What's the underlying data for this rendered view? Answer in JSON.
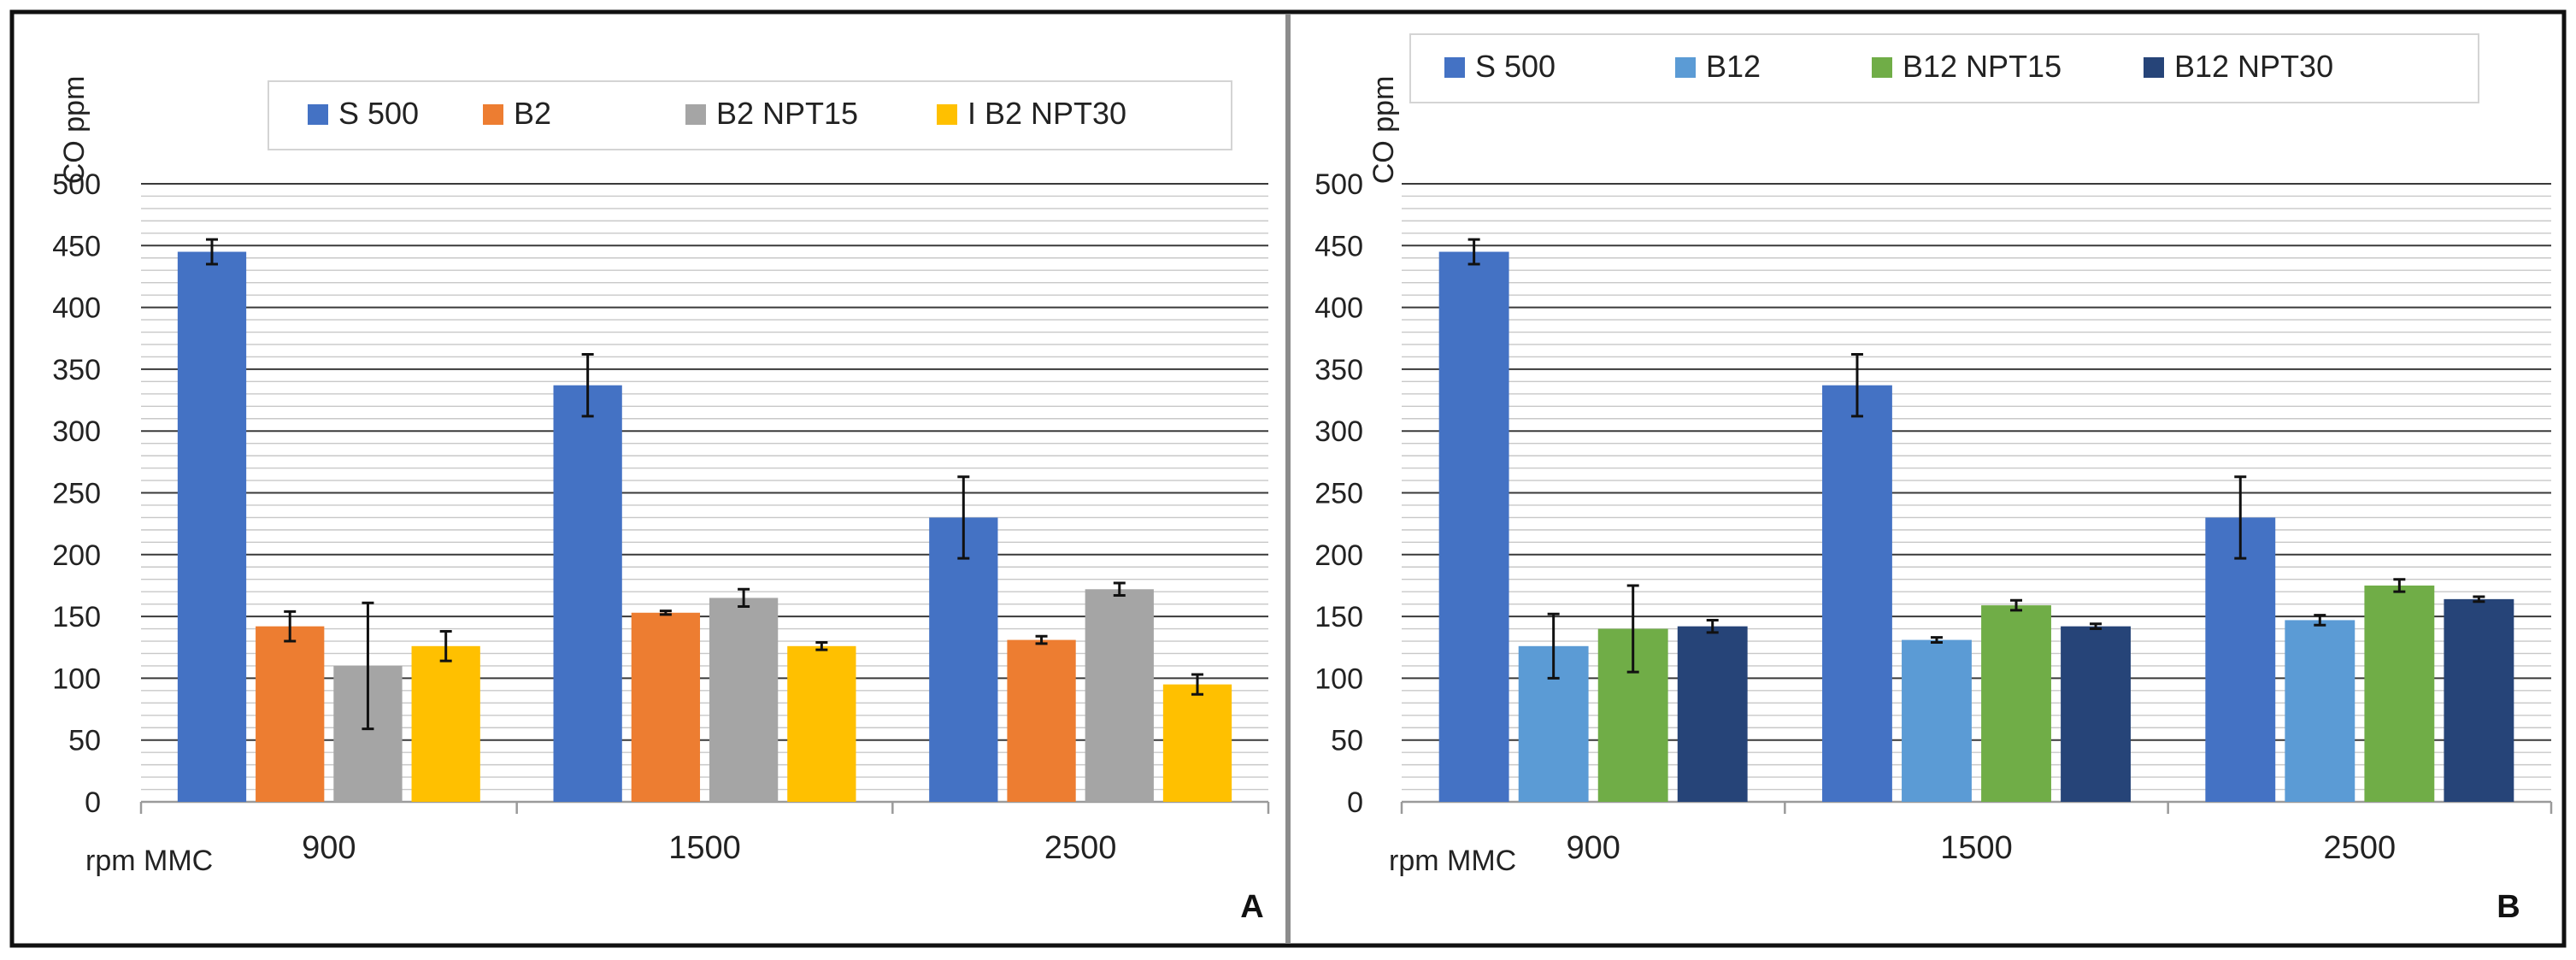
{
  "chart_data": [
    {
      "type": "bar",
      "panel": "A",
      "ylabel": "CO ppm",
      "xlabel": "rpm MMC",
      "ylim": [
        0,
        500
      ],
      "major_ticks": [
        0,
        50,
        100,
        150,
        200,
        250,
        300,
        350,
        400,
        450,
        500
      ],
      "categories": [
        "900",
        "1500",
        "2500"
      ],
      "legend_position": "top",
      "series": [
        {
          "name": "S 500",
          "color": "#4472C4",
          "values": [
            445,
            337,
            230
          ],
          "errors": [
            10,
            25,
            33
          ]
        },
        {
          "name": "B2",
          "color": "#ED7D31",
          "values": [
            142,
            153,
            131
          ],
          "errors": [
            12,
            1.5,
            3
          ]
        },
        {
          "name": "B2 NPT15",
          "color": "#A5A5A5",
          "values": [
            110,
            165,
            172
          ],
          "errors": [
            51,
            7,
            5
          ]
        },
        {
          "name": "I B2 NPT30",
          "color": "#FFC000",
          "values": [
            126,
            126,
            95
          ],
          "errors": [
            12,
            3,
            8
          ]
        }
      ]
    },
    {
      "type": "bar",
      "panel": "B",
      "ylabel": "CO ppm",
      "xlabel": "rpm MMC",
      "ylim": [
        0,
        500
      ],
      "major_ticks": [
        0,
        50,
        100,
        150,
        200,
        250,
        300,
        350,
        400,
        450,
        500
      ],
      "categories": [
        "900",
        "1500",
        "2500"
      ],
      "legend_position": "top",
      "series": [
        {
          "name": "S 500",
          "color": "#4472C4",
          "values": [
            445,
            337,
            230
          ],
          "errors": [
            10,
            25,
            33
          ]
        },
        {
          "name": "B12",
          "color": "#5B9BD5",
          "values": [
            126,
            131,
            147
          ],
          "errors": [
            26,
            2,
            4
          ]
        },
        {
          "name": "B12 NPT15",
          "color": "#70AD47",
          "values": [
            140,
            159,
            175
          ],
          "errors": [
            35,
            4,
            5
          ]
        },
        {
          "name": "B12 NPT30",
          "color": "#264478",
          "values": [
            142,
            142,
            164
          ],
          "errors": [
            5,
            2,
            2
          ]
        }
      ]
    }
  ]
}
